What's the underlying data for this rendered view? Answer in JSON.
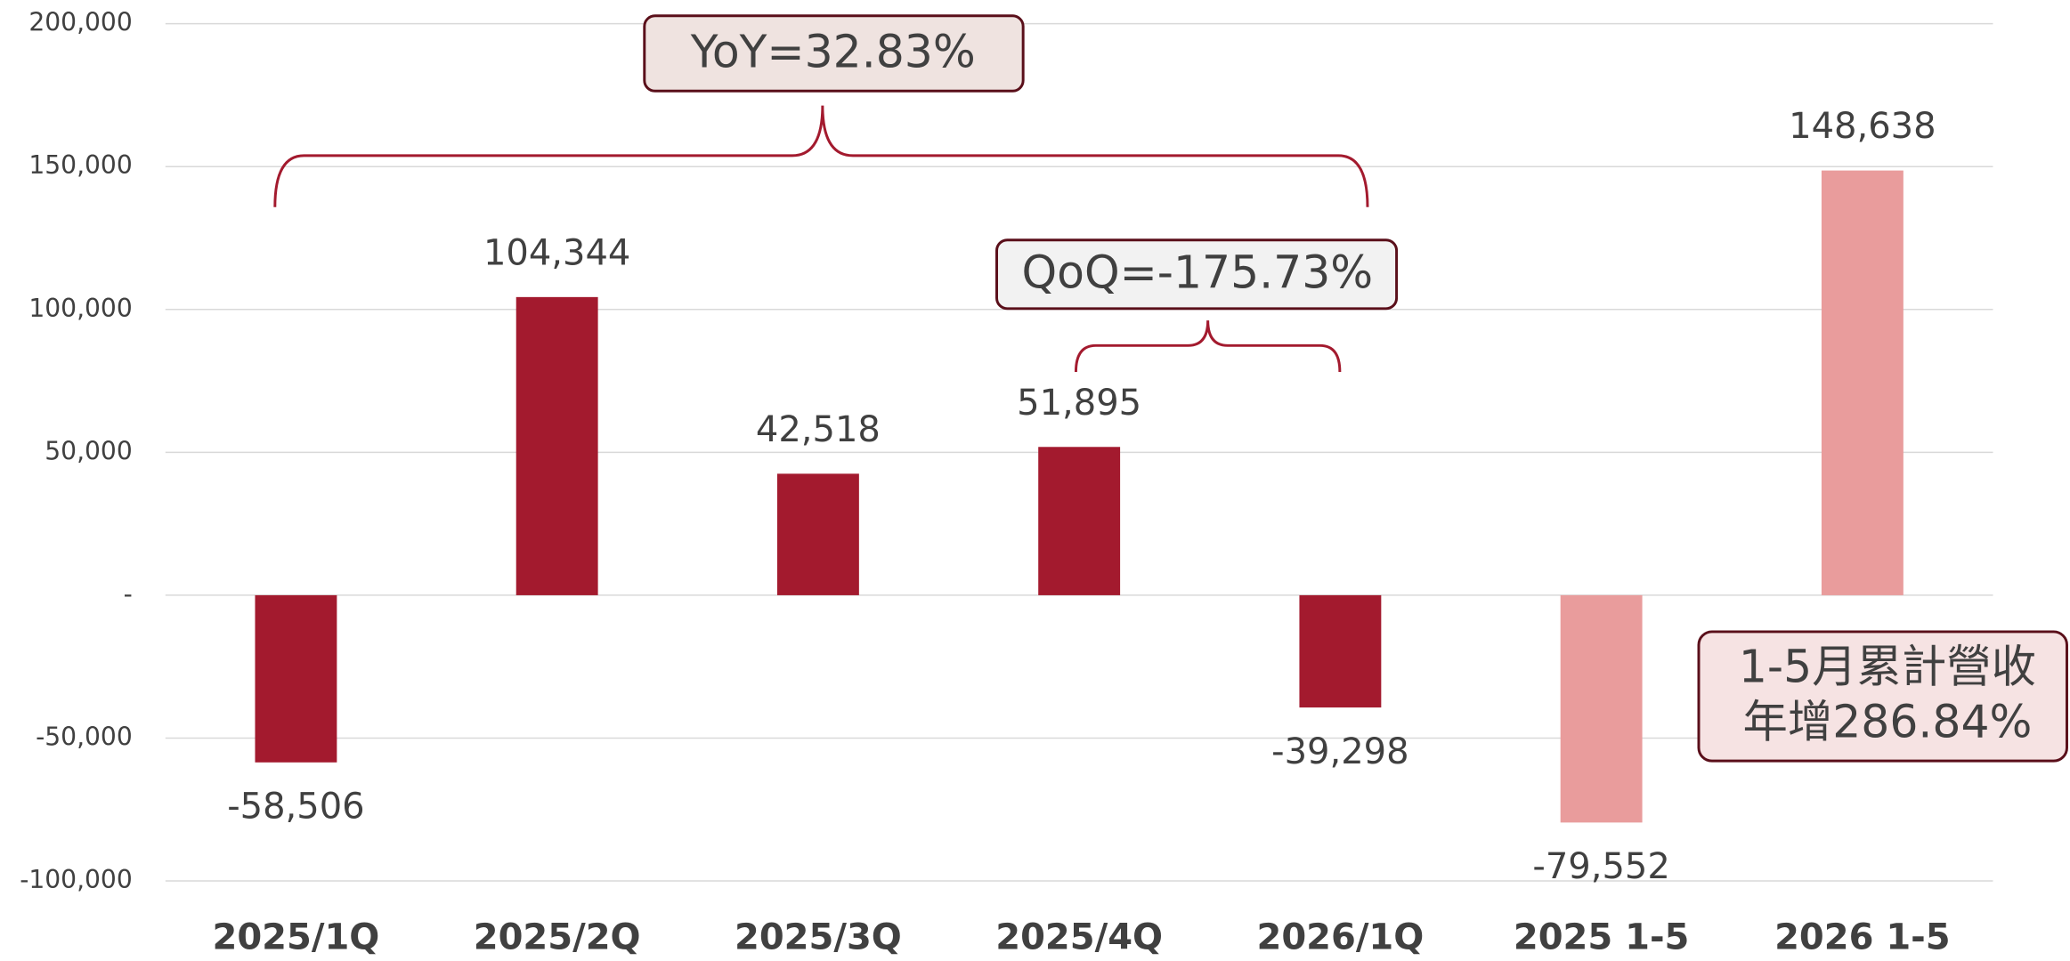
{
  "chart_data": {
    "type": "bar",
    "categories": [
      "2025/1Q",
      "2025/2Q",
      "2025/3Q",
      "2025/4Q",
      "2026/1Q",
      "2025 1-5",
      "2026 1-5"
    ],
    "values": [
      -58506,
      104344,
      42518,
      51895,
      -39298,
      -79552,
      148638
    ],
    "value_labels": [
      "-58,506",
      "104,344",
      "42,518",
      "51,895",
      "-39,298",
      "-79,552",
      "148,638"
    ],
    "colors": [
      "#a31a2e",
      "#a31a2e",
      "#a31a2e",
      "#a31a2e",
      "#a31a2e",
      "#e99c9c",
      "#e99c9c"
    ],
    "ylim": [
      -100000,
      200000
    ],
    "yticks": [
      {
        "value": -100000,
        "label": "-100,000"
      },
      {
        "value": -50000,
        "label": "-50,000"
      },
      {
        "value": 0,
        "label": "-"
      },
      {
        "value": 50000,
        "label": "50,000"
      },
      {
        "value": 100000,
        "label": "100,000"
      },
      {
        "value": 150000,
        "label": "150,000"
      },
      {
        "value": 200000,
        "label": "200,000"
      }
    ],
    "grid": true,
    "annotations": [
      {
        "text": "YoY=32.83%"
      },
      {
        "text": "QoQ=-175.73%"
      },
      {
        "lines": [
          "1-5月累計營收",
          "年增286.84%"
        ]
      }
    ]
  }
}
